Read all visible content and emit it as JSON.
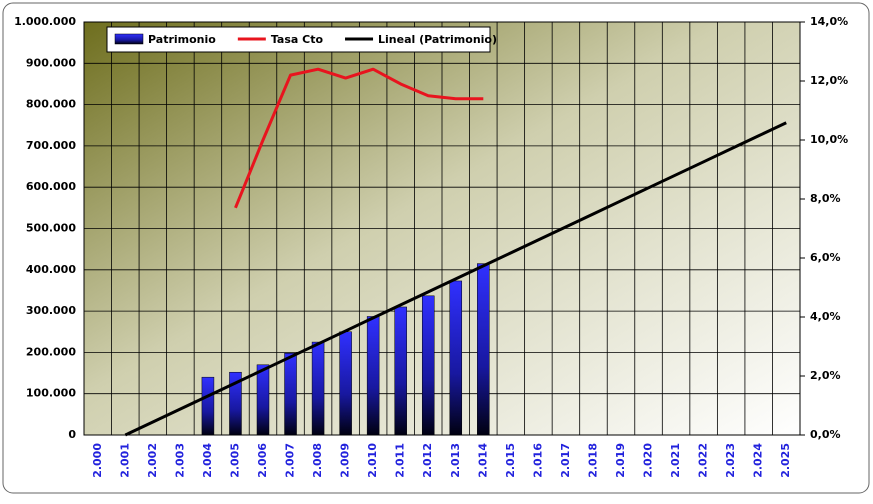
{
  "chart_data": {
    "type": "bar",
    "categories": [
      "2.000",
      "2.001",
      "2.002",
      "2.003",
      "2.004",
      "2.005",
      "2.006",
      "2.007",
      "2.008",
      "2.009",
      "2.010",
      "2.011",
      "2.012",
      "2.013",
      "2.014",
      "2.015",
      "2.016",
      "2.017",
      "2.018",
      "2.019",
      "2.020",
      "2.021",
      "2.022",
      "2.023",
      "2.024",
      "2.025"
    ],
    "series": [
      {
        "name": "Patrimonio",
        "type": "bar",
        "color": "#2020e0",
        "values": [
          null,
          null,
          null,
          null,
          140000,
          152000,
          170000,
          198000,
          225000,
          250000,
          287000,
          310000,
          337000,
          373000,
          415000,
          null,
          null,
          null,
          null,
          null,
          null,
          null,
          null,
          null,
          null,
          null
        ]
      },
      {
        "name": "Tasa Cto",
        "type": "line",
        "color": "#e8141e",
        "axis": "y2",
        "values": [
          null,
          null,
          null,
          null,
          null,
          7.7,
          10.0,
          12.2,
          12.4,
          12.1,
          12.4,
          11.9,
          11.5,
          11.4,
          11.4,
          null,
          null,
          null,
          null,
          null,
          null,
          null,
          null,
          null,
          null,
          null
        ]
      },
      {
        "name": "Lineal (Patrimonio)",
        "type": "line",
        "color": "#000000",
        "values": [
          null,
          0,
          31500,
          63000,
          94500,
          126000,
          157500,
          189000,
          220500,
          252000,
          283500,
          315000,
          346500,
          378000,
          409500,
          441000,
          472500,
          504000,
          535500,
          567000,
          598500,
          630000,
          661500,
          693000,
          724500,
          756000
        ]
      }
    ],
    "ylim": [
      0,
      1000000
    ],
    "yticks": [
      0,
      {
        "value": 100000,
        "label": "100.000"
      },
      {
        "value": 200000,
        "label": "200.000"
      },
      {
        "value": 300000,
        "label": "300.000"
      },
      {
        "value": 400000,
        "label": "400.000"
      },
      {
        "value": 500000,
        "label": "500.000"
      },
      {
        "value": 600000,
        "label": "600.000"
      },
      {
        "value": 700000,
        "label": "700.000"
      },
      {
        "value": 800000,
        "label": "800.000"
      },
      {
        "value": 900000,
        "label": "900.000"
      },
      {
        "value": 1000000,
        "label": "1.000.000"
      }
    ],
    "y2lim": [
      0,
      14
    ],
    "y2ticks": [
      {
        "value": 0,
        "label": "0,0%"
      },
      {
        "value": 2,
        "label": "2,0%"
      },
      {
        "value": 4,
        "label": "4,0%"
      },
      {
        "value": 6,
        "label": "6,0%"
      },
      {
        "value": 8,
        "label": "8,0%"
      },
      {
        "value": 10,
        "label": "10,0%"
      },
      {
        "value": 12,
        "label": "12,0%"
      },
      {
        "value": 14,
        "label": "14,0%"
      }
    ],
    "grid": true,
    "legend": "top-left"
  }
}
